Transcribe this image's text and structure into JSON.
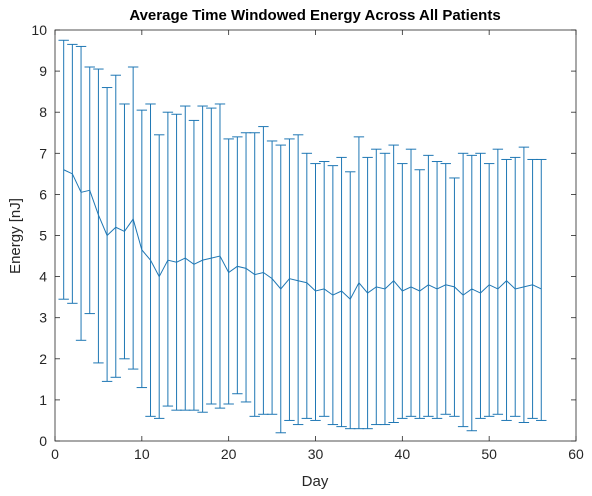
{
  "chart_data": {
    "type": "line",
    "title": "Average Time Windowed Energy Across All Patients",
    "xlabel": "Day",
    "ylabel": "Energy [nJ]",
    "xlim": [
      0,
      60
    ],
    "ylim": [
      0,
      10
    ],
    "xticks": [
      0,
      10,
      20,
      30,
      40,
      50,
      60
    ],
    "yticks": [
      0,
      1,
      2,
      3,
      4,
      5,
      6,
      7,
      8,
      9,
      10
    ],
    "grid": false,
    "box": true,
    "colors": {
      "series": "#1f77b4",
      "axes": "#262626"
    },
    "series": [
      {
        "error_bars": true,
        "x": [
          1,
          2,
          3,
          4,
          5,
          6,
          7,
          8,
          9,
          10,
          11,
          12,
          13,
          14,
          15,
          16,
          17,
          18,
          19,
          20,
          21,
          22,
          23,
          24,
          25,
          26,
          27,
          28,
          29,
          30,
          31,
          32,
          33,
          34,
          35,
          36,
          37,
          38,
          39,
          40,
          41,
          42,
          43,
          44,
          45,
          46,
          47,
          48,
          49,
          50,
          51,
          52,
          53,
          54,
          55,
          56
        ],
        "y": [
          6.6,
          6.5,
          6.05,
          6.1,
          5.5,
          5.0,
          5.2,
          5.1,
          5.4,
          4.65,
          4.4,
          4.0,
          4.4,
          4.35,
          4.45,
          4.3,
          4.4,
          4.45,
          4.5,
          4.1,
          4.25,
          4.2,
          4.05,
          4.1,
          3.95,
          3.7,
          3.95,
          3.9,
          3.85,
          3.65,
          3.7,
          3.55,
          3.65,
          3.45,
          3.85,
          3.6,
          3.75,
          3.7,
          3.9,
          3.65,
          3.75,
          3.65,
          3.8,
          3.7,
          3.8,
          3.75,
          3.55,
          3.7,
          3.6,
          3.8,
          3.7,
          3.9,
          3.7,
          3.75,
          3.8,
          3.7
        ],
        "upper": [
          9.75,
          9.65,
          9.6,
          9.1,
          9.05,
          8.6,
          8.9,
          8.2,
          9.1,
          8.05,
          8.2,
          7.45,
          8.0,
          7.95,
          8.15,
          7.8,
          8.15,
          8.1,
          8.2,
          7.35,
          7.4,
          7.5,
          7.5,
          7.65,
          7.3,
          7.2,
          7.35,
          7.45,
          7.0,
          6.75,
          6.8,
          6.7,
          6.9,
          6.55,
          7.4,
          6.9,
          7.1,
          7.0,
          7.2,
          6.75,
          7.1,
          6.6,
          6.95,
          6.8,
          6.75,
          6.4,
          7.0,
          6.95,
          7.0,
          6.75,
          7.1,
          6.85,
          6.9,
          7.15,
          6.85,
          6.85
        ],
        "lower": [
          3.45,
          3.35,
          2.45,
          3.1,
          1.9,
          1.45,
          1.55,
          2.0,
          1.75,
          1.3,
          0.6,
          0.55,
          0.85,
          0.75,
          0.75,
          0.75,
          0.7,
          0.9,
          0.8,
          0.9,
          1.15,
          0.95,
          0.6,
          0.65,
          0.65,
          0.2,
          0.5,
          0.4,
          0.55,
          0.5,
          0.6,
          0.4,
          0.35,
          0.3,
          0.3,
          0.3,
          0.4,
          0.4,
          0.45,
          0.55,
          0.6,
          0.55,
          0.6,
          0.55,
          0.65,
          0.6,
          0.35,
          0.25,
          0.55,
          0.6,
          0.65,
          0.5,
          0.6,
          0.45,
          0.55,
          0.5
        ]
      }
    ]
  }
}
